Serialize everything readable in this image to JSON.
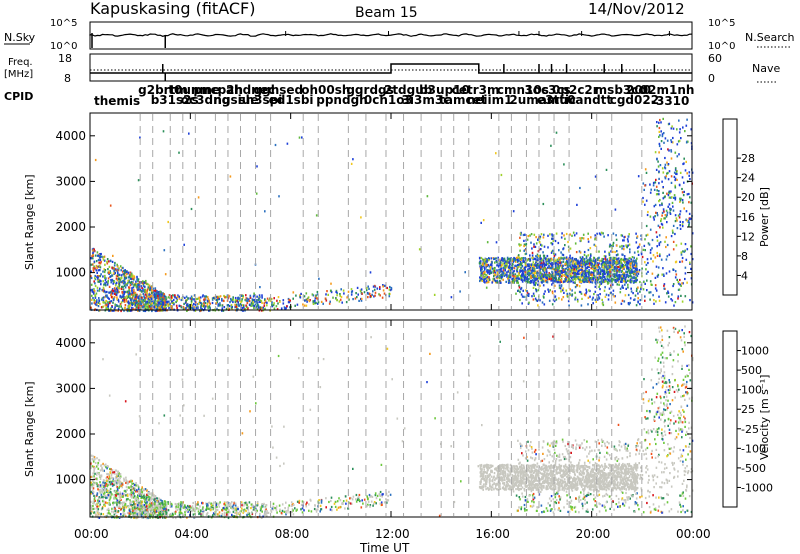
{
  "header": {
    "site": "Kapuskasing (fitACF)",
    "beam": "Beam 15",
    "date": "14/Nov/2012"
  },
  "panels": {
    "nsky": {
      "label": "N.Sky",
      "ticks": [
        "10^5",
        "10^0"
      ],
      "right_label": "N.Search",
      "right_ticks": [
        "10^5",
        "10^0"
      ]
    },
    "freq": {
      "label_line1": "Freq.",
      "label_line2": "[MHz]",
      "ticks": [
        "18",
        "8"
      ],
      "right_label": "Nave",
      "right_ticks": [
        "60",
        "0"
      ]
    },
    "cpid": {
      "label": "CPID",
      "first_label": "themis",
      "last_label": "-3310",
      "mid_label": "200"
    }
  },
  "chart_data": [
    {
      "type": "heatmap",
      "parameter": "Power",
      "ylabel": "Slant Range [km]",
      "xlabel": "",
      "yticks": [
        1000,
        2000,
        3000,
        4000
      ],
      "ylim": [
        180,
        4500
      ],
      "colorbar": {
        "label": "Power [dB]",
        "ticks": [
          "4",
          "8",
          "12",
          "16",
          "20",
          "24",
          "28"
        ],
        "colors": [
          "#1d3fd8",
          "#2a6fbf",
          "#2c8f5a",
          "#5fb83c",
          "#9fd22a",
          "#f0c821",
          "#f59a1c",
          "#e8551c",
          "#d8141c"
        ]
      }
    },
    {
      "type": "heatmap",
      "parameter": "Velocity",
      "ylabel": "Slant Range [km]",
      "xlabel": "Time UT",
      "yticks": [
        1000,
        2000,
        3000,
        4000
      ],
      "ylim": [
        180,
        4500
      ],
      "colorbar": {
        "label": "Velocity [m s⁻¹]",
        "ticks": [
          "-1000",
          "-500",
          "-100",
          "-25",
          "25",
          "100",
          "500",
          "1000"
        ],
        "colors": [
          "#d8141c",
          "#f0501c",
          "#f59a1c",
          "#f0c821",
          "#c8c8c0",
          "#6cc83c",
          "#2c8f5a",
          "#2a6fbf",
          "#1d3fd8"
        ]
      }
    }
  ],
  "time_axis": {
    "ticks": [
      "00:00",
      "04:00",
      "08:00",
      "12:00",
      "16:00",
      "20:00",
      "00:00"
    ],
    "label": "Time UT"
  }
}
